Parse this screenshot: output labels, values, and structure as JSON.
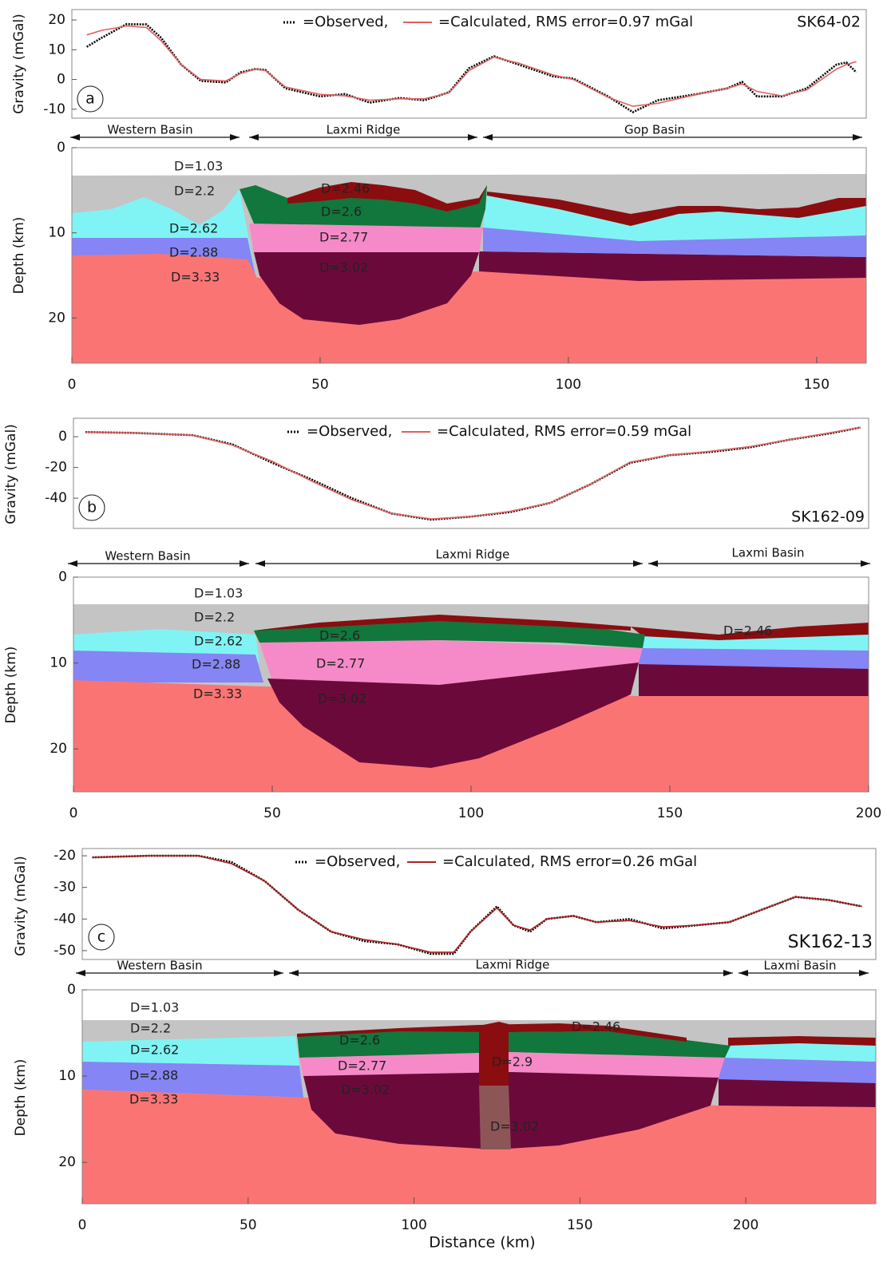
{
  "chart_data": [
    {
      "type": "line",
      "panel": "a",
      "profile": "SK64-02",
      "ylabel": "Gravity (mGal)",
      "x": [
        3,
        6,
        11,
        15,
        18,
        22,
        26,
        31,
        34,
        37,
        39,
        43,
        50,
        55,
        60,
        66,
        71,
        76,
        80,
        85,
        90,
        97,
        101,
        108,
        113,
        118,
        126,
        132,
        135,
        138,
        143,
        148,
        154,
        156,
        158
      ],
      "series": [
        {
          "name": "=Observed,",
          "color": "#000000",
          "style": "dotted",
          "values": [
            11,
            14,
            18.6,
            18.5,
            14,
            5,
            -0.5,
            -1,
            2.4,
            3.5,
            3.2,
            -3,
            -5.7,
            -4.9,
            -7.8,
            -6.2,
            -7,
            -4.3,
            3.8,
            7.8,
            5,
            1,
            0.3,
            -5.7,
            -11,
            -7,
            -4.9,
            -3,
            -0.8,
            -5.7,
            -5.7,
            -3,
            5,
            5.7,
            2.4
          ]
        },
        {
          "name": "=Calculated, RMS error=0.97 mGal",
          "color": "#e06060",
          "style": "solid",
          "values": [
            15,
            16.5,
            18,
            17.5,
            13,
            5,
            0,
            -0.5,
            2,
            3.5,
            3,
            -2.5,
            -5,
            -5.5,
            -7,
            -6.5,
            -6.5,
            -4.5,
            3,
            7.5,
            5.5,
            1.5,
            0,
            -6,
            -9,
            -8,
            -5,
            -3,
            -1.5,
            -4,
            -5.5,
            -3.5,
            3.5,
            5,
            6
          ]
        }
      ],
      "xlim": [
        0,
        160
      ],
      "ylim": [
        -13,
        23.5
      ],
      "yticks": [
        -10,
        0,
        10,
        20
      ]
    },
    {
      "type": "section",
      "ylabel": "Depth (km)",
      "regions": [
        "Western Basin",
        "Laxmi Ridge",
        "Gop Basin"
      ],
      "labels": [
        "D=1.03",
        "D=2.2",
        "D=2.62",
        "D=2.88",
        "D=3.33",
        "D=2.46",
        "D=2.6",
        "D=2.77",
        "D=3.02"
      ],
      "xlim": [
        0,
        160
      ],
      "xticks": [
        0,
        50,
        100,
        150
      ],
      "ylim": [
        0,
        25.3
      ],
      "yticks": [
        0,
        10,
        20
      ]
    },
    {
      "type": "line",
      "panel": "b",
      "profile": "SK162-09",
      "ylabel": "Gravity (mGal)",
      "x": [
        3,
        15,
        30,
        40,
        50,
        60,
        70,
        80,
        90,
        100,
        110,
        120,
        130,
        140,
        150,
        160,
        170,
        180,
        190,
        198
      ],
      "series": [
        {
          "name": "=Observed,",
          "color": "#000000",
          "style": "dotted",
          "values": [
            3,
            2.5,
            1,
            -5,
            -17,
            -28,
            -40,
            -50,
            -54,
            -52,
            -49,
            -43,
            -31,
            -17,
            -12,
            -10,
            -7,
            -2,
            2,
            6
          ]
        },
        {
          "name": "=Calculated, RMS error=0.59 mGal",
          "color": "#e06060",
          "style": "solid",
          "values": [
            3,
            2.5,
            1,
            -5.5,
            -16,
            -29,
            -41,
            -50,
            -53.5,
            -52,
            -48.5,
            -43,
            -31,
            -16.5,
            -12,
            -9.5,
            -6.5,
            -2,
            2.5,
            6
          ]
        }
      ],
      "xlim": [
        0,
        200
      ],
      "ylim": [
        -59.7,
        12
      ],
      "yticks": [
        -40,
        -20,
        0
      ]
    },
    {
      "type": "section",
      "ylabel": "Depth (km)",
      "regions": [
        "Western Basin",
        "Laxmi Ridge",
        "Laxmi Basin"
      ],
      "labels": [
        "D=1.03",
        "D=2.2",
        "D=2.62",
        "D=2.88",
        "D=3.33",
        "D=2.6",
        "D=2.77",
        "D=3.02",
        "D=2.46"
      ],
      "xlim": [
        0,
        200
      ],
      "xticks": [
        0,
        50,
        100,
        150,
        200
      ],
      "ylim": [
        0,
        25
      ],
      "yticks": [
        0,
        10,
        20
      ]
    },
    {
      "type": "line",
      "panel": "c",
      "profile": "SK162-13",
      "ylabel": "Gravity (mGal)",
      "x": [
        3,
        20,
        35,
        45,
        55,
        65,
        75,
        85,
        95,
        105,
        112,
        117,
        125,
        130,
        135,
        140,
        148,
        155,
        165,
        175,
        185,
        195,
        205,
        215,
        225,
        235
      ],
      "series": [
        {
          "name": "=Observed,",
          "color": "#000000",
          "style": "dotted",
          "values": [
            -20.5,
            -20,
            -20,
            -22,
            -28,
            -37,
            -44,
            -47,
            -48,
            -51,
            -51,
            -44,
            -36,
            -42,
            -44,
            -40,
            -39,
            -41,
            -40,
            -43,
            -42,
            -41,
            -37,
            -33,
            -34,
            -36
          ]
        },
        {
          "name": "=Calculated, RMS error=0.26 mGal",
          "color": "#b02020",
          "style": "solid",
          "values": [
            -20.5,
            -20,
            -20,
            -22.5,
            -28,
            -37,
            -44,
            -46.5,
            -48,
            -50.5,
            -50.5,
            -44,
            -36.5,
            -42,
            -43.5,
            -40,
            -39,
            -41,
            -40.5,
            -42.5,
            -42,
            -41,
            -37,
            -33,
            -34,
            -36
          ]
        }
      ],
      "xlim": [
        0,
        239.2
      ],
      "ylim": [
        -52.8,
        -17.7
      ],
      "yticks": [
        -50,
        -40,
        -30,
        -20
      ]
    },
    {
      "type": "section",
      "ylabel": "Depth (km)",
      "xlabel": "Distance (km)",
      "regions": [
        "Western Basin",
        "Laxmi Ridge",
        "Laxmi Basin"
      ],
      "labels": [
        "D=1.03",
        "D=2.2",
        "D=2.62",
        "D=2.88",
        "D=3.33",
        "D=2.6",
        "D=2.77",
        "D=3.02",
        "D=2.9",
        "D=2.46",
        "D=3.02"
      ],
      "xlim": [
        0,
        239.2
      ],
      "xticks": [
        0,
        50,
        100,
        150,
        200
      ],
      "ylim": [
        0,
        24.8
      ],
      "yticks": [
        0,
        10,
        20
      ]
    }
  ]
}
